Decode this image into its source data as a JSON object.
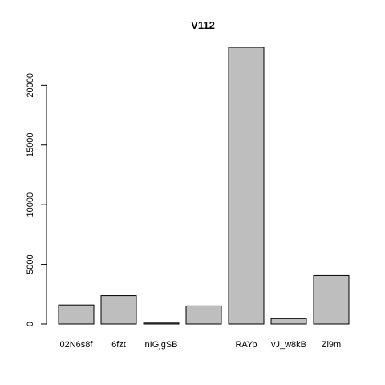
{
  "chart_data": {
    "type": "bar",
    "title": "V112",
    "xlabel": "",
    "ylabel": "",
    "categories": [
      "02N6s8f",
      "6fzt",
      "nIGjgSB",
      "",
      "RAYp",
      "vJ_w8kB",
      "Zl9m"
    ],
    "values": [
      1600,
      2380,
      80,
      1520,
      23180,
      450,
      4070
    ],
    "ylim": [
      0,
      23180
    ],
    "yticks": [
      0,
      5000,
      10000,
      15000,
      20000
    ],
    "ytick_labels": [
      "0",
      "5000",
      "10000",
      "15000",
      "20000"
    ],
    "grid": false,
    "bar_color": "#bebebe"
  }
}
